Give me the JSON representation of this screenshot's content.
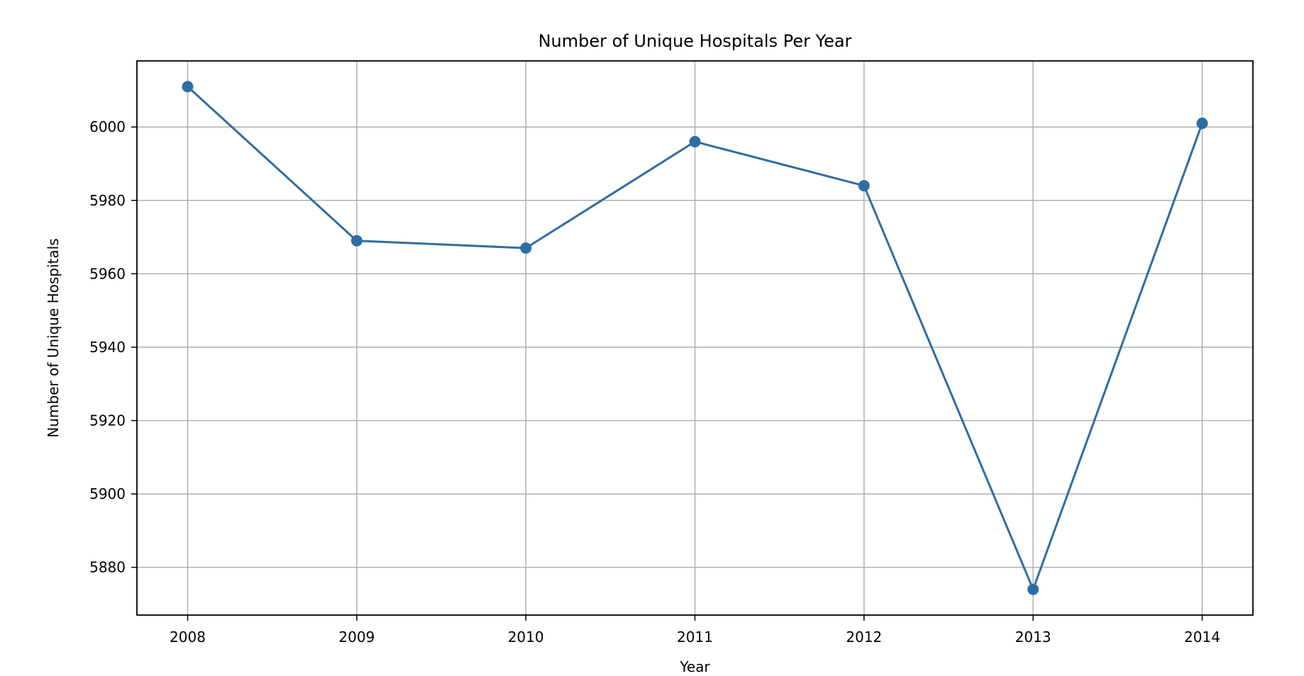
{
  "chart_data": {
    "type": "line",
    "title": "Number of Unique Hospitals Per Year",
    "xlabel": "Year",
    "ylabel": "Number of Unique Hospitals",
    "x": [
      2008,
      2009,
      2010,
      2011,
      2012,
      2013,
      2014
    ],
    "series": [
      {
        "values": [
          6011,
          5969,
          5967,
          5996,
          5984,
          5874,
          6001
        ],
        "color": "#2e6da4",
        "marker": "circle"
      }
    ],
    "xlim": [
      2007.7,
      2014.3
    ],
    "ylim": [
      5867,
      6018
    ],
    "yticks": [
      5880,
      5900,
      5920,
      5940,
      5960,
      5980,
      6000
    ],
    "xticks": [
      2008,
      2009,
      2010,
      2011,
      2012,
      2013,
      2014
    ],
    "grid": true,
    "legend": "none"
  }
}
